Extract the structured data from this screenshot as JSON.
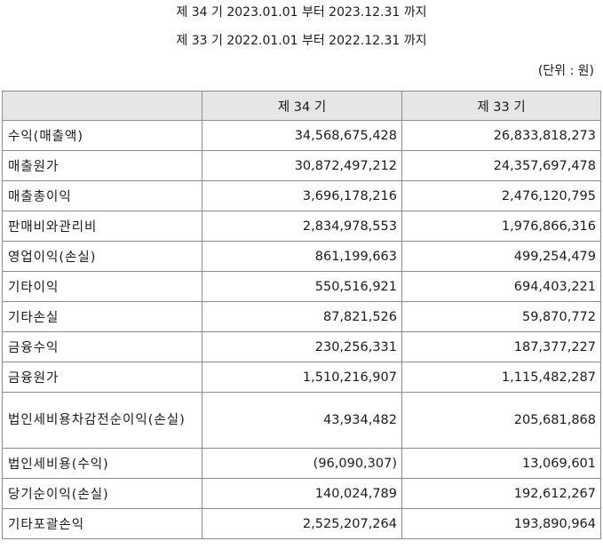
{
  "header": {
    "period_current": "제 34 기 2023.01.01 부터 2023.12.31 까지",
    "period_prior": "제 33 기 2022.01.01 부터 2022.12.31 까지",
    "unit": "(단위 : 원)"
  },
  "table": {
    "columns": [
      "",
      "제 34 기",
      "제 33 기"
    ],
    "rows": [
      {
        "label": "수익(매출액)",
        "current": "34,568,675,428",
        "prior": "26,833,818,273"
      },
      {
        "label": "매출원가",
        "current": "30,872,497,212",
        "prior": "24,357,697,478"
      },
      {
        "label": "매출총이익",
        "current": "3,696,178,216",
        "prior": "2,476,120,795"
      },
      {
        "label": "판매비와관리비",
        "current": "2,834,978,553",
        "prior": "1,976,866,316"
      },
      {
        "label": "영업이익(손실)",
        "current": "861,199,663",
        "prior": "499,254,479"
      },
      {
        "label": "기타이익",
        "current": "550,516,921",
        "prior": "694,403,221"
      },
      {
        "label": "기타손실",
        "current": "87,821,526",
        "prior": "59,870,772"
      },
      {
        "label": "금융수익",
        "current": "230,256,331",
        "prior": "187,377,227"
      },
      {
        "label": "금융원가",
        "current": "1,510,216,907",
        "prior": "1,115,482,287"
      },
      {
        "label": "법인세비용차감전순이익(손실)",
        "current": "43,934,482",
        "prior": "205,681,868"
      },
      {
        "label": "법인세비용(수익)",
        "current": "(96,090,307)",
        "prior": "13,069,601"
      },
      {
        "label": "당기순이익(손실)",
        "current": "140,024,789",
        "prior": "192,612,267"
      },
      {
        "label": "기타포괄손익",
        "current": "2,525,207,264",
        "prior": "193,890,964"
      }
    ]
  }
}
